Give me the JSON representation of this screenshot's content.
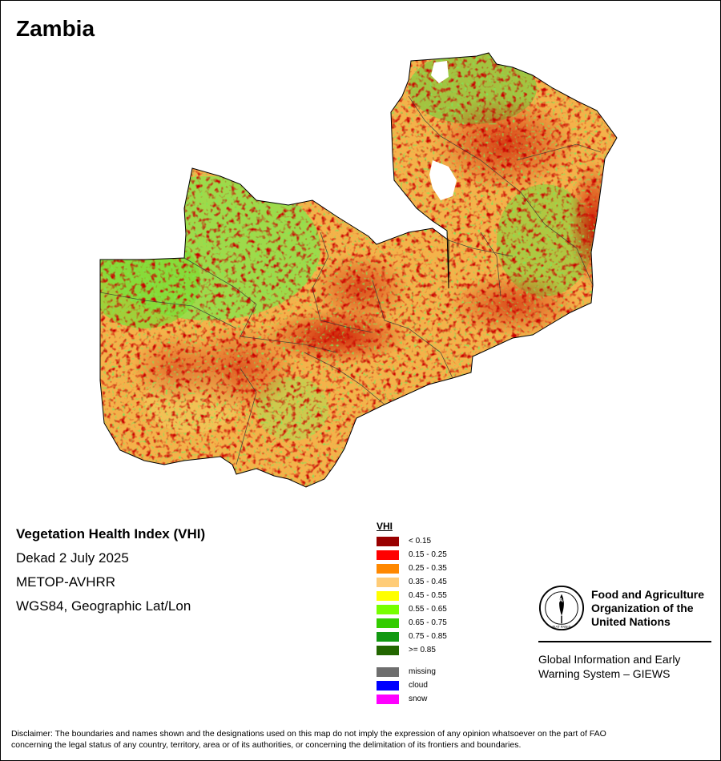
{
  "title": "Zambia",
  "info": {
    "index_name": "Vegetation Health Index (VHI)",
    "period": "Dekad 2 July 2025",
    "sensor": "METOP-AVHRR",
    "projection": "WGS84, Geographic Lat/Lon"
  },
  "legend": {
    "title": "VHI",
    "classes": [
      {
        "label": "< 0.15",
        "color": "#990000"
      },
      {
        "label": "0.15 - 0.25",
        "color": "#ff0000"
      },
      {
        "label": "0.25 - 0.35",
        "color": "#ff8800"
      },
      {
        "label": "0.35 - 0.45",
        "color": "#ffcc77"
      },
      {
        "label": "0.45 - 0.55",
        "color": "#ffff00"
      },
      {
        "label": "0.55 - 0.65",
        "color": "#77ff00"
      },
      {
        "label": "0.65 - 0.75",
        "color": "#33cc00"
      },
      {
        "label": "0.75 - 0.85",
        "color": "#119911"
      },
      {
        "label": ">= 0.85",
        "color": "#226600"
      }
    ],
    "special": [
      {
        "label": "missing",
        "color": "#6e6e6e"
      },
      {
        "label": "cloud",
        "color": "#0000ff"
      },
      {
        "label": "snow",
        "color": "#ff00ff"
      }
    ]
  },
  "fao": {
    "name_line1": "Food and Agriculture",
    "name_line2": "Organization of the",
    "name_line3": "United Nations",
    "logo_text": "FAO",
    "logo_motto": "FIAT PANIS",
    "system_line1": "Global Information and Early",
    "system_line2": "Warning System – GIEWS"
  },
  "disclaimer_line1": "Disclaimer: The boundaries and names shown and the designations used on this map do not imply the expression of any opinion whatsoever on the part of FAO",
  "disclaimer_line2": "concerning the legal status of any country, territory, area or of its authorities, or concerning the delimitation of its frontiers and boundaries."
}
